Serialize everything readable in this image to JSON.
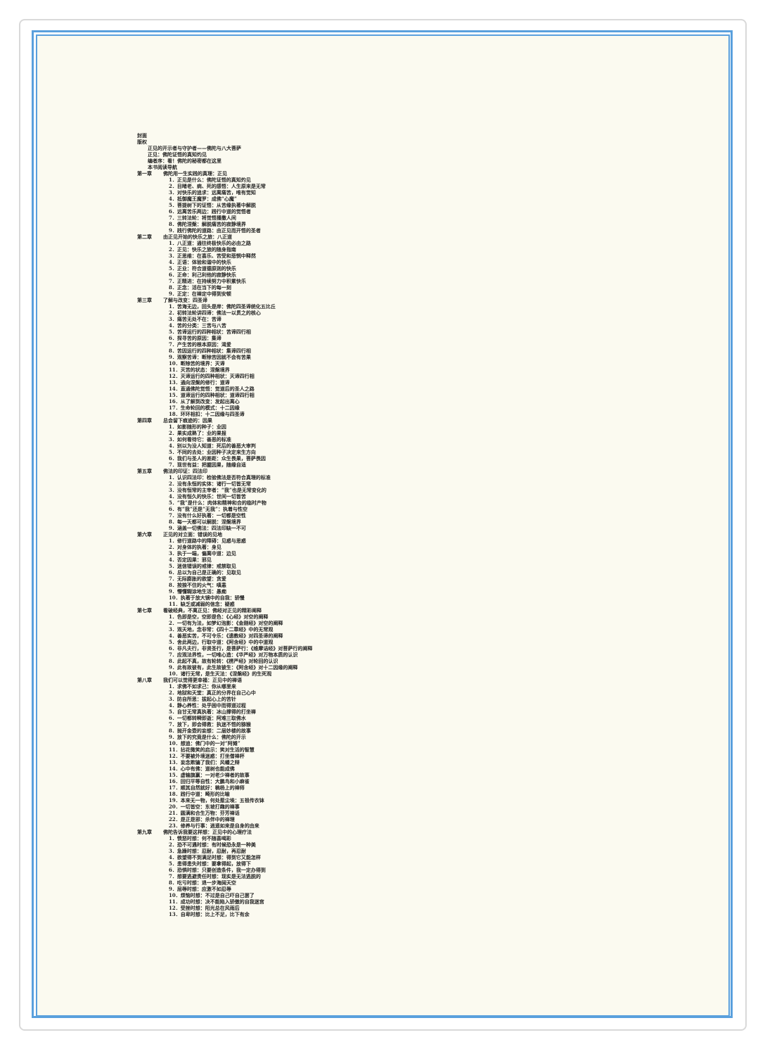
{
  "front": [
    "封面",
    "版权"
  ],
  "preface": [
    "正见的开示者与守护者——佛陀与八大菩萨",
    "正见：佛陀证悟的真知灼见",
    "编者序：看！佛陀的秘密都在这里",
    "本书阅读导航"
  ],
  "chapters": [
    {
      "label": "第一章",
      "title": "佛陀用一生实践的真理：正见",
      "items": [
        "1．正见是什么：佛陀证悟的真知灼见",
        "2．目睹老、病、死的感悟：人生原来是无常",
        "3．对快乐的追求：远离痛苦，唯有觉知",
        "4．抵御魔王魔罗：成佛“心魔”",
        "5．菩提树下的证悟：从苦缘执著中解脱",
        "6．远离苦乐两边：践行中道的觉悟者",
        "7．三转法轮：将觉悟播撒人间",
        "8．佛陀涅槃：解脱痛苦的寂静境界",
        "9．践行佛陀的道路：由正见而开悟的圣者"
      ]
    },
    {
      "label": "第二章",
      "title": "由正见开始的快乐之旅：八正道",
      "items": [
        "1．八正道：通往终极快乐的必由之路",
        "2．正见：快乐之旅的随身指南",
        "3．正思维：在喜乐、苦受和悲悯中释然",
        "4．正语：体验和谐中的快乐",
        "5．正业：符合道德原则的快乐",
        "6．正命：利己利他的寂静快乐",
        "7．正精进：在持续努力中积累快乐",
        "8．正念：活在当下的每一刻",
        "9．正定：在禅定中得到安顿"
      ]
    },
    {
      "label": "第三章",
      "title": "了解与改变：四圣谛",
      "items": [
        "1．苦海无边，回头是岸：佛陀四圣谛统化五比丘",
        "2．初转法轮讲四谛：佛法一以贯之的核心",
        "3．痛苦无处不在：苦谛",
        "4．苦的分类：三苦与八苦",
        "5．苦谛运行的四种相状：苦谛四行相",
        "6．探寻苦的原因：集谛",
        "7．产生苦的根本原因：渴爱",
        "8．苦因运行的四种相状：集谛四行相",
        "9．观察苦谛：断除苦因就不会有苦果",
        "10．断除苦的境界：灭谛",
        "11．灭苦的状态：涅槃境界",
        "12．灭谛运行的四种相状：灭谛四行相",
        "13．通向涅槃的修行：道谛",
        "14．直通佛陀觉悟：觉道后的圣人之路",
        "15．道谛运行的四种相状：道谛四行相",
        "16．从了解到改变：发起出离心",
        "17．生命轮回的模式：十二因缘",
        "18．环环相扣：十二因缘与四圣谛"
      ]
    },
    {
      "label": "第四章",
      "title": "总会留下痕迹的：因果",
      "items": [
        "1．如影随形的种子：业因",
        "2．果实成熟了：业的果报",
        "3．如何看待它：善恶的标准",
        "4．别以为没人知道：死后的善恶大审判",
        "5．不同的去处：业因种子决定来生方向",
        "6．我们与圣人的差距：众生畏果，菩萨畏因",
        "7．现世有益：把握因果，随缘自适"
      ]
    },
    {
      "label": "第五章",
      "title": "佛法的印证：四法印",
      "items": [
        "1．认识四法印：检验佛法是否符合真理的标准",
        "2．没有永恒的实体：诸行一切皆无常",
        "3．没有恒常的主宰者：“我”也是无常变化的",
        "4．没有恒久的快乐：世间一切皆苦",
        "5．“我”是什么：肉体和精神和合的临时产物",
        "6．有“我”还是“无我”：执着与性空",
        "7．没有什么好执著：一切都是空性",
        "8．每一天都可以解脱：涅槃境界",
        "9．涵盖一切佛法：四法印缺一不可"
      ]
    },
    {
      "label": "第六章",
      "title": "正见的对立面：错误的见地",
      "items": [
        "1．修行道路中的障碍：见惑与思惑",
        "2．对身体的执著：身见",
        "3．执于一端，偏离中道：边见",
        "4．否定因果：邪见",
        "5．迷信错误的戒律：戒禁取见",
        "6．总以为自己是正确的：见取见",
        "7．无际膨胀的欲望：贪爱",
        "8．按捺不住的火气：嗔恚",
        "9．懵懂糊涂地生活：愚痴",
        "10．执著于放大镜中的自我：骄慢",
        "11．缺乏或减弱的信念：疑惑"
      ]
    },
    {
      "label": "第七章",
      "title": "看破经典，不离正见：佛经对正见的精彩阐释",
      "items": [
        "1．色即是空，空即是色：《心经》对空的阐释",
        "2．一切有为法，如梦幻泡影：《金刚经》对空的阐释",
        "3．观天地，念非常：《四十二章经》中的无常观",
        "4．善恶实苦，不可令乐：《遗教经》对四圣谛的阐释",
        "5．舍此两边，行取中道：《阿含经》中的中道观",
        "6．非凡夫行，非贤圣行，是菩萨行：《维摩诘经》对菩萨行的阐释",
        "7．应观法界性，一切唯心造：《华严经》对万物本质的认识",
        "8．此起不真，故有轮转：《楞严经》对轮回的认识",
        "9．此有故彼有，此生故彼生：《阿含经》对十二因缘的阐释",
        "10．诸行无常，是生灭法：《涅槃经》的生死观"
      ]
    },
    {
      "label": "第八章",
      "title": "我们可以觉得更幸福：正见中的禅语",
      "items": [
        "1．求佛不如求己：你从哪里来",
        "2．地狱和天堂：真正的分界在自己心中",
        "3．防自所思：拔起心上的苦针",
        "4．静心养性：处乎困中而得道过程",
        "5．自甘无常真执著：冰山撑得的打坐禅",
        "6．一切都转瞬即逝：阿难三取佛水",
        "7．放下，即会得救：执迷不悟的猕猴",
        "8．抛开金壶的妄想：二层妙楼的故事",
        "9．放下的究竟是什么：佛陀的开示",
        "10．想追：佛门中的一对“阿傩”",
        "11．拈花微笑的启示：笑对生活的智慧",
        "12．不要被外境迷惑：打坐僧禅杯",
        "13．妄念欺骗了我们：风幡之辩",
        "14．心中有佛：道树也能成佛",
        "15．虚输旗赢：一对老少禅者的故事",
        "16．回归平等自性：大鹏鸟和小麻雀",
        "17．顺其自然就好：稿杨上的禅师",
        "18．践行中道：畸形的比喻",
        "19．本来无一物，何处惹尘埃：五祖传衣钵",
        "20．一切皆空：东坡打趣的禅事",
        "21．圆满和合生万物：芬芳禅话",
        "22．是正是邪：杀伴中的禅理",
        "23．修养与行事：逍遥如来是自身的由来"
      ]
    },
    {
      "label": "第九章",
      "title": "佛陀告诉我要这样想：正见中的心理疗法",
      "items": [
        "1．愤怒时想：何不随喜喝彩",
        "2．恐不可遇时想：有时候恐永是一种美",
        "3．急躁时想：忍耐，忍耐，再忍耐",
        "4．欲望得不到满足时想：得到它又能怎样",
        "5．患得患失时想：要拿得起，放得下",
        "6．恐惧时想：只要创造条件，我一定办得到",
        "7．想要逃避责任时想：现实是无法逃脱的",
        "8．吃亏时想：退一步海阔天空",
        "9．屈辱时想：应激不如忍辱",
        "10．烦恼时想：不过是自己吓自己罢了",
        "11．成功时想：决不能陷入骄傲的自我迷宫",
        "12．受挫时想：阳光总在风雨后",
        "13．自卑时想：比上不足，比下有余"
      ]
    }
  ]
}
